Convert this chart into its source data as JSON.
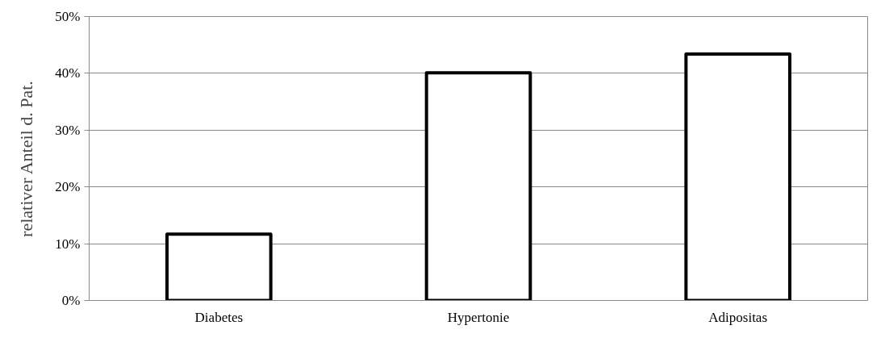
{
  "chart_data": {
    "type": "bar",
    "ylabel": "relativer Anteil d. Pat.",
    "categories": [
      "Diabetes",
      "Hypertonie",
      "Adipositas"
    ],
    "values": [
      0.117,
      0.401,
      0.434
    ],
    "color": "#ffffff",
    "ylim": [
      0,
      0.5
    ],
    "yticks": [
      {
        "value": 0,
        "label": "0%"
      },
      {
        "value": 0.1,
        "label": "10%"
      },
      {
        "value": 0.2,
        "label": "20%"
      },
      {
        "value": 0.3,
        "label": "30%"
      },
      {
        "value": 0.4,
        "label": "40%"
      },
      {
        "value": 0.5,
        "label": "50%"
      }
    ],
    "grid": "y"
  }
}
